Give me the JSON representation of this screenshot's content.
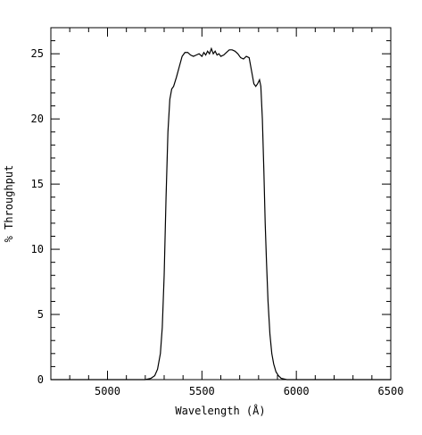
{
  "chart_data": {
    "type": "line",
    "title": "",
    "xlabel": "Wavelength (Å)",
    "ylabel": "% Throughput",
    "xlim": [
      4700,
      6500
    ],
    "ylim": [
      0,
      27
    ],
    "x_ticks": [
      5000,
      5500,
      6000,
      6500
    ],
    "y_ticks": [
      0,
      5,
      10,
      15,
      20,
      25
    ],
    "x_tick_labels": [
      "5000",
      "5500",
      "6000",
      "6500"
    ],
    "y_tick_labels": [
      "0",
      "5",
      "10",
      "15",
      "20",
      "25"
    ],
    "x_minor_step": 100,
    "y_minor_step": 1,
    "grid": false,
    "legend": "none",
    "series": [
      {
        "color": "#000000",
        "points": [
          [
            4700,
            0
          ],
          [
            5200,
            0
          ],
          [
            5230,
            0.1
          ],
          [
            5250,
            0.3
          ],
          [
            5265,
            0.8
          ],
          [
            5280,
            2
          ],
          [
            5290,
            4
          ],
          [
            5300,
            8
          ],
          [
            5310,
            14
          ],
          [
            5320,
            19
          ],
          [
            5330,
            21.5
          ],
          [
            5340,
            22.3
          ],
          [
            5350,
            22.5
          ],
          [
            5365,
            23.2
          ],
          [
            5380,
            24
          ],
          [
            5395,
            24.8
          ],
          [
            5410,
            25.1
          ],
          [
            5425,
            25.1
          ],
          [
            5440,
            24.9
          ],
          [
            5455,
            24.8
          ],
          [
            5470,
            24.9
          ],
          [
            5485,
            25
          ],
          [
            5500,
            24.8
          ],
          [
            5510,
            25.1
          ],
          [
            5520,
            24.9
          ],
          [
            5530,
            25.2
          ],
          [
            5540,
            25
          ],
          [
            5550,
            25.4
          ],
          [
            5560,
            25
          ],
          [
            5570,
            25.2
          ],
          [
            5580,
            24.9
          ],
          [
            5590,
            25
          ],
          [
            5600,
            24.8
          ],
          [
            5615,
            24.9
          ],
          [
            5630,
            25.1
          ],
          [
            5645,
            25.3
          ],
          [
            5660,
            25.3
          ],
          [
            5675,
            25.2
          ],
          [
            5690,
            25
          ],
          [
            5705,
            24.7
          ],
          [
            5720,
            24.6
          ],
          [
            5735,
            24.8
          ],
          [
            5750,
            24.7
          ],
          [
            5765,
            23.5
          ],
          [
            5775,
            22.7
          ],
          [
            5785,
            22.5
          ],
          [
            5795,
            22.7
          ],
          [
            5805,
            23
          ],
          [
            5812,
            22.5
          ],
          [
            5820,
            20
          ],
          [
            5828,
            16
          ],
          [
            5835,
            12
          ],
          [
            5842,
            9
          ],
          [
            5850,
            6
          ],
          [
            5860,
            3.5
          ],
          [
            5870,
            2
          ],
          [
            5880,
            1.2
          ],
          [
            5892,
            0.6
          ],
          [
            5905,
            0.3
          ],
          [
            5920,
            0.1
          ],
          [
            5950,
            0
          ],
          [
            6500,
            0
          ]
        ]
      }
    ]
  }
}
